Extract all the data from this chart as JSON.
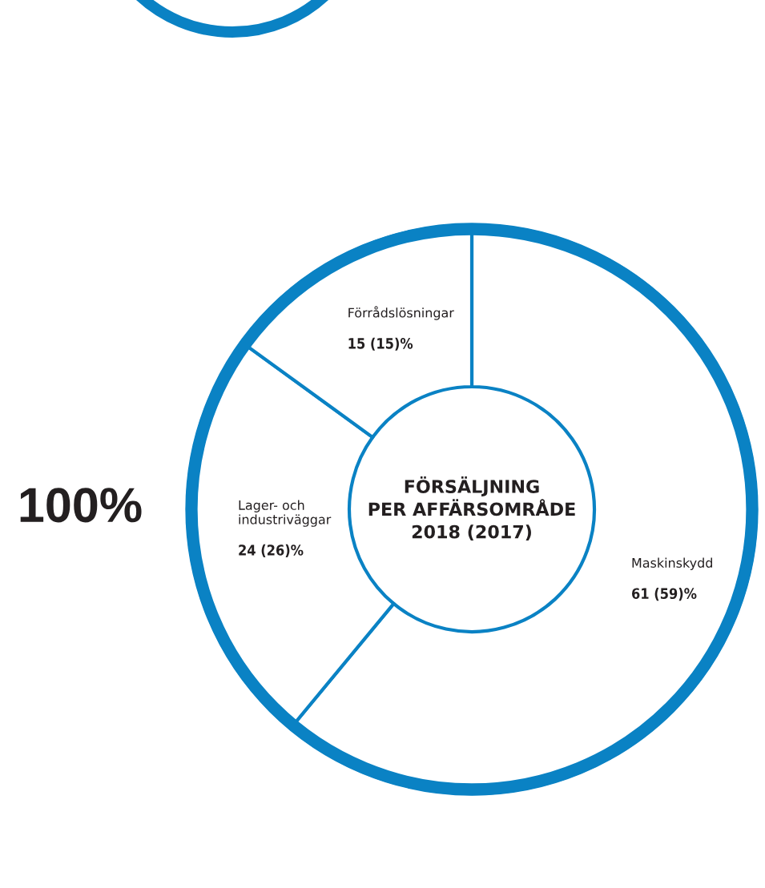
{
  "chart_data": {
    "type": "donut",
    "title": "FÖRSÄLJNING\nPER AFFÄRSOMRÅDE\n2018 (2017)",
    "categories": [
      "Maskinskydd",
      "Lager- och\nindustriväggar",
      "Förrådslösningar"
    ],
    "values": [
      61,
      24,
      15
    ],
    "colors": [
      "#ffffff",
      "#ffffff",
      "#ffffff"
    ],
    "value_labels": [
      "61 (59)%",
      "24 (26)%",
      "15 (15)%"
    ],
    "annotations": [
      "100%"
    ]
  }
}
